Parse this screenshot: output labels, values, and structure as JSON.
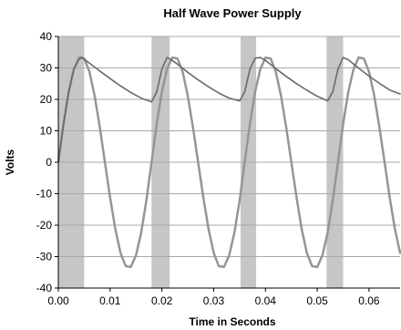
{
  "chart_data": {
    "type": "line",
    "title": "Half Wave Power Supply",
    "xlabel": "Time in Seconds",
    "ylabel": "Volts",
    "xlim": [
      0,
      0.066
    ],
    "ylim": [
      -40,
      40
    ],
    "x_ticks": [
      "0.00",
      "0.01",
      "0.02",
      "0.03",
      "0.04",
      "0.05",
      "0.06"
    ],
    "y_ticks": [
      "40",
      "30",
      "20",
      "10",
      "0",
      "-10",
      "-20",
      "-30",
      "-40"
    ],
    "grid": "horizontal",
    "legend": "none",
    "shaded_intervals": [
      [
        0.0,
        0.005
      ],
      [
        0.018,
        0.0215
      ],
      [
        0.0352,
        0.0382
      ],
      [
        0.0518,
        0.055
      ]
    ],
    "series": [
      {
        "name": "",
        "color": "#959595",
        "x": [
          0.0,
          0.001,
          0.002,
          0.003,
          0.004,
          0.005,
          0.006,
          0.007,
          0.008,
          0.009,
          0.01,
          0.011,
          0.012,
          0.013,
          0.014,
          0.015,
          0.016,
          0.017,
          0.018,
          0.019,
          0.02,
          0.021,
          0.022,
          0.023,
          0.024,
          0.025,
          0.026,
          0.027,
          0.028,
          0.029,
          0.03,
          0.031,
          0.032,
          0.033,
          0.034,
          0.035,
          0.036,
          0.037,
          0.038,
          0.039,
          0.04,
          0.041,
          0.042,
          0.043,
          0.044,
          0.045,
          0.046,
          0.047,
          0.048,
          0.049,
          0.05,
          0.051,
          0.052,
          0.053,
          0.054,
          0.055,
          0.056,
          0.057,
          0.058,
          0.059,
          0.06,
          0.061,
          0.062,
          0.063,
          0.064,
          0.065,
          0.066
        ],
        "y": [
          0.0,
          12.2,
          22.4,
          29.6,
          33.3,
          33.0,
          28.8,
          21.2,
          11.2,
          0.0,
          -11.2,
          -21.2,
          -28.8,
          -33.0,
          -33.3,
          -29.6,
          -22.4,
          -12.2,
          0.0,
          12.2,
          22.4,
          29.6,
          33.3,
          33.0,
          28.8,
          21.2,
          11.2,
          0.0,
          -11.2,
          -21.2,
          -28.8,
          -33.0,
          -33.3,
          -29.6,
          -22.4,
          -12.2,
          0.0,
          12.2,
          22.4,
          29.6,
          33.3,
          33.0,
          28.8,
          21.2,
          11.2,
          0.0,
          -11.2,
          -21.2,
          -28.8,
          -33.0,
          -33.3,
          -29.6,
          -22.4,
          -12.2,
          0.0,
          12.2,
          22.4,
          29.6,
          33.3,
          33.0,
          28.8,
          21.2,
          11.2,
          0.0,
          -11.2,
          -21.2,
          -28.8
        ]
      },
      {
        "name": "",
        "color": "#6a6a6a",
        "x": [
          0.0,
          0.001,
          0.002,
          0.003,
          0.004,
          0.0045,
          0.006,
          0.008,
          0.01,
          0.012,
          0.014,
          0.016,
          0.018,
          0.019,
          0.02,
          0.021,
          0.022,
          0.023,
          0.025,
          0.027,
          0.029,
          0.031,
          0.033,
          0.035,
          0.036,
          0.037,
          0.038,
          0.039,
          0.04,
          0.042,
          0.044,
          0.046,
          0.048,
          0.05,
          0.052,
          0.053,
          0.054,
          0.055,
          0.056,
          0.058,
          0.06,
          0.062,
          0.064,
          0.066
        ],
        "y": [
          0.0,
          12.2,
          22.4,
          29.6,
          32.7,
          33.4,
          31.5,
          29.0,
          26.6,
          24.3,
          22.2,
          20.4,
          19.2,
          22.4,
          29.6,
          33.3,
          32.4,
          31.2,
          28.6,
          26.2,
          24.0,
          22.0,
          20.4,
          19.5,
          22.4,
          29.6,
          33.1,
          33.3,
          32.4,
          29.8,
          27.3,
          25.0,
          22.9,
          21.0,
          19.5,
          22.4,
          29.6,
          33.3,
          32.6,
          29.9,
          27.4,
          25.1,
          23.0,
          21.7
        ]
      }
    ]
  }
}
